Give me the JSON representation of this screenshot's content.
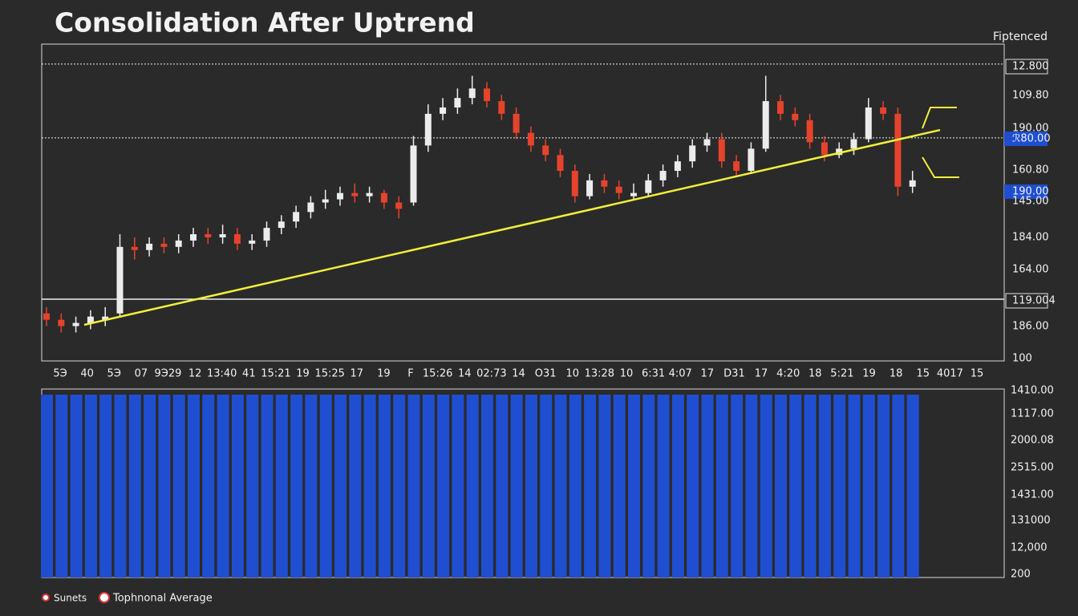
{
  "chart_data": {
    "type": "candlestick",
    "title": "Consolidation After Uptrend",
    "corner_label": "Fiptenced",
    "up_color": "#ececec",
    "down_color": "#e5432b",
    "trend_color": "#f2ef3a",
    "volume_color": "#1f4fd0",
    "ylim": [
      100,
      200
    ],
    "candles": [
      [
        115,
        117,
        111,
        113
      ],
      [
        113,
        115,
        109,
        111
      ],
      [
        111,
        114,
        109,
        112
      ],
      [
        112,
        116,
        110,
        114
      ],
      [
        113,
        117,
        111,
        114
      ],
      [
        115,
        140,
        114,
        136
      ],
      [
        136,
        139,
        132,
        135
      ],
      [
        135,
        139,
        133,
        137
      ],
      [
        137,
        139,
        134,
        136
      ],
      [
        136,
        140,
        134,
        138
      ],
      [
        138,
        142,
        136,
        140
      ],
      [
        140,
        142,
        137,
        139
      ],
      [
        139,
        143,
        137,
        140
      ],
      [
        140,
        142,
        135,
        137
      ],
      [
        137,
        140,
        135,
        138
      ],
      [
        138,
        144,
        136,
        142
      ],
      [
        142,
        146,
        140,
        144
      ],
      [
        144,
        149,
        142,
        147
      ],
      [
        147,
        152,
        145,
        150
      ],
      [
        150,
        154,
        148,
        151
      ],
      [
        151,
        155,
        149,
        153
      ],
      [
        153,
        156,
        150,
        152
      ],
      [
        152,
        155,
        150,
        153
      ],
      [
        153,
        154,
        148,
        150
      ],
      [
        150,
        152,
        145,
        148
      ],
      [
        150,
        171,
        149,
        168
      ],
      [
        168,
        181,
        166,
        178
      ],
      [
        178,
        183,
        176,
        180
      ],
      [
        180,
        186,
        178,
        183
      ],
      [
        183,
        190,
        181,
        186
      ],
      [
        186,
        188,
        180,
        182
      ],
      [
        182,
        184,
        176,
        178
      ],
      [
        178,
        180,
        170,
        172
      ],
      [
        172,
        174,
        166,
        168
      ],
      [
        168,
        170,
        163,
        165
      ],
      [
        165,
        167,
        158,
        160
      ],
      [
        160,
        162,
        150,
        152
      ],
      [
        152,
        159,
        151,
        157
      ],
      [
        157,
        159,
        153,
        155
      ],
      [
        155,
        157,
        151,
        153
      ],
      [
        152,
        156,
        151,
        153
      ],
      [
        153,
        159,
        152,
        157
      ],
      [
        157,
        162,
        155,
        160
      ],
      [
        160,
        165,
        158,
        163
      ],
      [
        163,
        170,
        161,
        168
      ],
      [
        168,
        172,
        166,
        170
      ],
      [
        170,
        172,
        161,
        163
      ],
      [
        163,
        165,
        158,
        160
      ],
      [
        160,
        169,
        159,
        167
      ],
      [
        167,
        190,
        166,
        182
      ],
      [
        182,
        184,
        176,
        178
      ],
      [
        178,
        180,
        174,
        176
      ],
      [
        176,
        178,
        167,
        169
      ],
      [
        169,
        171,
        163,
        165
      ],
      [
        165,
        169,
        164,
        167
      ],
      [
        167,
        172,
        165,
        170
      ],
      [
        170,
        183,
        169,
        180
      ],
      [
        180,
        182,
        176,
        178
      ],
      [
        178,
        180,
        152,
        155
      ],
      [
        155,
        160,
        153,
        157
      ]
    ],
    "trendline": [
      111.4,
      172.9
    ],
    "levels": [
      {
        "value": 193.7,
        "style": "dotted"
      },
      {
        "value": 170.4,
        "style": "dotted"
      },
      {
        "value": 119.5,
        "style": "solid"
      }
    ],
    "vlim": [
      0,
      100
    ],
    "volume": [
      100,
      100,
      100,
      100,
      100,
      100,
      100,
      100,
      100,
      100,
      100,
      100,
      100,
      100,
      100,
      100,
      100,
      100,
      100,
      100,
      100,
      100,
      100,
      100,
      100,
      100,
      100,
      100,
      100,
      100,
      100,
      100,
      100,
      100,
      100,
      100,
      100,
      100,
      100,
      100,
      100,
      100,
      100,
      100,
      100,
      100,
      100,
      100,
      100,
      100,
      100,
      100,
      100,
      100,
      100,
      100,
      100,
      100,
      100,
      100
    ],
    "x_labels": [
      "5Э",
      "40",
      "5Э",
      "07",
      "9Э29",
      "12",
      "13:40",
      "41",
      "15:21",
      "19",
      "15:25",
      "17",
      "19",
      "F",
      "15:26",
      "14",
      "02:73",
      "14",
      "Ο31",
      "10",
      "13:28",
      "10",
      "6:31",
      "4:07",
      "17",
      "D31",
      "17",
      "4:20",
      "18",
      "5:21",
      "19",
      "18",
      "15",
      "4017",
      "15"
    ],
    "axis_labels": [
      "12.800",
      "109.80",
      "190.00",
      "ℛ80.00",
      "160.80",
      "190.00",
      "145.00",
      "184.00",
      "164.00",
      "119.004",
      "186.00",
      "100"
    ],
    "volume_labels": [
      "1410.00",
      "1117.00",
      "2000.08",
      "2515.00",
      "1431.00",
      "131000",
      "12,000",
      "200"
    ],
    "legend": [
      "Sunets",
      "Tophnonal Average"
    ]
  }
}
